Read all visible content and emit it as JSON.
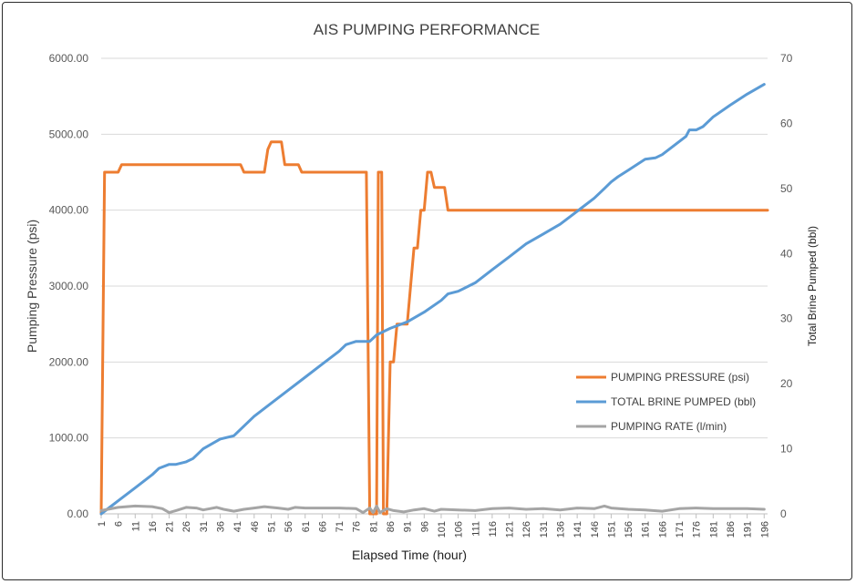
{
  "chart_data": {
    "type": "line",
    "title": "AIS PUMPING PERFORMANCE",
    "xlabel": "Elapsed Time (hour)",
    "ylabel": "Pumping Pressure (psi)",
    "y2label": "Total Brine Pumped (bbl)",
    "xlim": [
      1,
      197
    ],
    "ylim": [
      0,
      6000
    ],
    "y2lim": [
      0,
      70
    ],
    "x_ticks": [
      "1",
      "6",
      "11",
      "16",
      "21",
      "26",
      "31",
      "36",
      "41",
      "46",
      "51",
      "56",
      "61",
      "66",
      "71",
      "76",
      "81",
      "86",
      "91",
      "96",
      "101",
      "106",
      "111",
      "116",
      "121",
      "126",
      "131",
      "136",
      "141",
      "146",
      "151",
      "156",
      "161",
      "166",
      "171",
      "176",
      "181",
      "186",
      "191",
      "196"
    ],
    "y_ticks": [
      "0.00",
      "1000.00",
      "2000.00",
      "3000.00",
      "4000.00",
      "5000.00",
      "6000.00"
    ],
    "y2_ticks": [
      "0",
      "10",
      "20",
      "30",
      "40",
      "50",
      "60",
      "70"
    ],
    "grid": true,
    "legend_position": "lower-right",
    "series": [
      {
        "name": "PUMPING PRESSURE (psi)",
        "axis": "left",
        "color": "#ED7D31",
        "points": [
          [
            1,
            0
          ],
          [
            2,
            4500
          ],
          [
            6,
            4500
          ],
          [
            7,
            4600
          ],
          [
            42,
            4600
          ],
          [
            43,
            4500
          ],
          [
            49,
            4500
          ],
          [
            50,
            4800
          ],
          [
            51,
            4900
          ],
          [
            54,
            4900
          ],
          [
            55,
            4600
          ],
          [
            59,
            4600
          ],
          [
            60,
            4500
          ],
          [
            79,
            4500
          ],
          [
            80,
            0
          ],
          [
            82,
            0
          ],
          [
            82.5,
            4500
          ],
          [
            83.5,
            4500
          ],
          [
            84,
            0
          ],
          [
            85,
            0
          ],
          [
            86,
            2000
          ],
          [
            87,
            2000
          ],
          [
            88,
            2500
          ],
          [
            91,
            2500
          ],
          [
            92,
            3000
          ],
          [
            93,
            3500
          ],
          [
            94,
            3500
          ],
          [
            95,
            4000
          ],
          [
            96,
            4000
          ],
          [
            97,
            4500
          ],
          [
            98,
            4500
          ],
          [
            99,
            4300
          ],
          [
            102,
            4300
          ],
          [
            103,
            4000
          ],
          [
            197,
            4000
          ]
        ]
      },
      {
        "name": "TOTAL BRINE PUMPED (bbl)",
        "axis": "right",
        "color": "#5B9BD5",
        "points": [
          [
            1,
            0
          ],
          [
            6,
            2
          ],
          [
            11,
            4
          ],
          [
            16,
            6
          ],
          [
            18,
            7
          ],
          [
            21,
            7.6
          ],
          [
            23,
            7.6
          ],
          [
            26,
            8
          ],
          [
            28,
            8.5
          ],
          [
            31,
            10
          ],
          [
            36,
            11.5
          ],
          [
            40,
            12
          ],
          [
            46,
            15
          ],
          [
            51,
            17
          ],
          [
            56,
            19
          ],
          [
            61,
            21
          ],
          [
            66,
            23
          ],
          [
            71,
            25
          ],
          [
            73,
            26
          ],
          [
            76,
            26.5
          ],
          [
            80,
            26.5
          ],
          [
            81,
            27
          ],
          [
            82,
            27.5
          ],
          [
            86,
            28.5
          ],
          [
            91,
            29.5
          ],
          [
            96,
            31
          ],
          [
            101,
            32.8
          ],
          [
            103,
            33.8
          ],
          [
            106,
            34.2
          ],
          [
            111,
            35.5
          ],
          [
            116,
            37.5
          ],
          [
            121,
            39.5
          ],
          [
            126,
            41.5
          ],
          [
            131,
            43
          ],
          [
            136,
            44.5
          ],
          [
            141,
            46.5
          ],
          [
            146,
            48.5
          ],
          [
            149,
            50
          ],
          [
            151,
            51
          ],
          [
            153,
            51.8
          ],
          [
            156,
            52.8
          ],
          [
            161,
            54.5
          ],
          [
            164,
            54.7
          ],
          [
            166,
            55.2
          ],
          [
            171,
            57.2
          ],
          [
            173,
            58
          ],
          [
            174,
            59
          ],
          [
            176,
            59
          ],
          [
            178,
            59.5
          ],
          [
            181,
            61
          ],
          [
            186,
            62.8
          ],
          [
            191,
            64.5
          ],
          [
            196,
            66
          ]
        ]
      },
      {
        "name": "PUMPING RATE (l/min)",
        "axis": "right",
        "color": "#A5A5A5",
        "points": [
          [
            1,
            0.5
          ],
          [
            6,
            1
          ],
          [
            11,
            1.2
          ],
          [
            16,
            1.1
          ],
          [
            19,
            0.8
          ],
          [
            21,
            0.2
          ],
          [
            23,
            0.5
          ],
          [
            26,
            1
          ],
          [
            29,
            0.9
          ],
          [
            31,
            0.6
          ],
          [
            33,
            0.8
          ],
          [
            35,
            1
          ],
          [
            37,
            0.7
          ],
          [
            40,
            0.4
          ],
          [
            43,
            0.7
          ],
          [
            46,
            0.9
          ],
          [
            49,
            1.1
          ],
          [
            51,
            1
          ],
          [
            53,
            0.9
          ],
          [
            56,
            0.7
          ],
          [
            58,
            1
          ],
          [
            61,
            0.9
          ],
          [
            66,
            0.9
          ],
          [
            71,
            0.9
          ],
          [
            76,
            0.8
          ],
          [
            78,
            0.2
          ],
          [
            80,
            0.9
          ],
          [
            81,
            0.2
          ],
          [
            82,
            1.2
          ],
          [
            83,
            0.2
          ],
          [
            85,
            0.8
          ],
          [
            87,
            0.5
          ],
          [
            90,
            0.3
          ],
          [
            93,
            0.6
          ],
          [
            96,
            0.8
          ],
          [
            99,
            0.4
          ],
          [
            101,
            0.7
          ],
          [
            106,
            0.6
          ],
          [
            111,
            0.5
          ],
          [
            116,
            0.8
          ],
          [
            121,
            0.9
          ],
          [
            126,
            0.7
          ],
          [
            131,
            0.8
          ],
          [
            136,
            0.6
          ],
          [
            141,
            0.9
          ],
          [
            146,
            0.8
          ],
          [
            149,
            1.2
          ],
          [
            151,
            0.9
          ],
          [
            156,
            0.7
          ],
          [
            161,
            0.6
          ],
          [
            166,
            0.4
          ],
          [
            171,
            0.8
          ],
          [
            176,
            0.9
          ],
          [
            181,
            0.8
          ],
          [
            186,
            0.8
          ],
          [
            191,
            0.8
          ],
          [
            196,
            0.7
          ]
        ]
      }
    ]
  }
}
